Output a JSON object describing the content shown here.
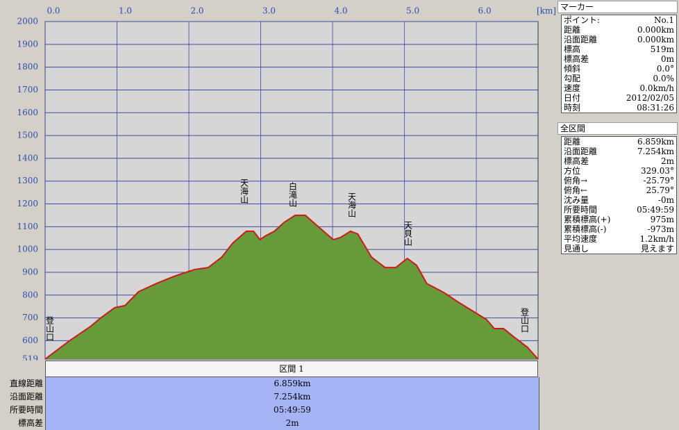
{
  "chart_data": {
    "type": "area",
    "x_unit_label": "[km]",
    "x": [
      0,
      0.34,
      0.63,
      0.77,
      0.97,
      1.11,
      1.3,
      1.55,
      1.79,
      2.08,
      2.27,
      2.46,
      2.61,
      2.8,
      2.9,
      2.99,
      3.06,
      3.19,
      3.33,
      3.48,
      3.62,
      3.82,
      4.01,
      4.11,
      4.25,
      4.35,
      4.54,
      4.73,
      4.88,
      5.04,
      5.17,
      5.31,
      5.56,
      5.75,
      5.94,
      6.14,
      6.25,
      6.38,
      6.52,
      6.71,
      6.859
    ],
    "values": [
      519,
      600,
      662,
      699,
      745,
      754,
      815,
      851,
      882,
      912,
      921,
      967,
      1028,
      1080,
      1080,
      1043,
      1059,
      1080,
      1120,
      1150,
      1150,
      1095,
      1043,
      1053,
      1080,
      1068,
      967,
      921,
      921,
      961,
      930,
      851,
      809,
      769,
      732,
      693,
      653,
      653,
      617,
      571,
      519
    ],
    "line_color": "#cc1a1a",
    "fill_color": "#679a38",
    "grid_color": "#3c4a9c",
    "xlim": [
      0,
      6.859
    ],
    "xticks": [
      {
        "value": 0,
        "label": "0.0"
      },
      {
        "value": 1,
        "label": "1.0"
      },
      {
        "value": 2,
        "label": "2.0"
      },
      {
        "value": 3,
        "label": "3.0"
      },
      {
        "value": 4,
        "label": "4.0"
      },
      {
        "value": 5,
        "label": "5.0"
      },
      {
        "value": 6,
        "label": "6.0"
      }
    ],
    "ylim": [
      519,
      2000
    ],
    "yticks": [
      519,
      600,
      700,
      800,
      900,
      1000,
      1100,
      1200,
      1300,
      1400,
      1500,
      1600,
      1700,
      1800,
      1900,
      2000
    ],
    "grid": true,
    "annotations": [
      "登山口",
      "天海山",
      "白滝山",
      "天海山",
      "天貝山",
      "登山口"
    ]
  },
  "section_table": {
    "header": "区間 1",
    "rows": [
      [
        "直線距離",
        "6.859km"
      ],
      [
        "沿面距離",
        "7.254km"
      ],
      [
        "所要時間",
        "05:49:59"
      ],
      [
        "標高差",
        "2m"
      ]
    ]
  },
  "marker_panel": {
    "title": "マーカー",
    "rows": [
      [
        "ポイント:",
        "No.1"
      ],
      [
        "距離",
        "0.000km"
      ],
      [
        "沿面距離",
        "0.000km"
      ],
      [
        "標高",
        "519m"
      ],
      [
        "標高差",
        "0m"
      ],
      [
        "傾斜",
        "0.0°"
      ],
      [
        "勾配",
        "0.0%"
      ],
      [
        "速度",
        "0.0km/h"
      ],
      [
        "日付",
        "2012/02/05"
      ],
      [
        "時刻",
        "08:31:26"
      ]
    ]
  },
  "total_panel": {
    "title": "全区間",
    "rows": [
      [
        "距離",
        "6.859km"
      ],
      [
        "沿面距離",
        "7.254km"
      ],
      [
        "標高差",
        "2m"
      ],
      [
        "方位",
        "329.03°"
      ],
      [
        "俯角→",
        "-25.79°"
      ],
      [
        "俯角←",
        "25.79°"
      ],
      [
        "沈み量",
        "-0m"
      ],
      [
        "所要時間",
        "05:49:59"
      ],
      [
        "累積標高(+)",
        "975m"
      ],
      [
        "累積標高(-)",
        "-973m"
      ],
      [
        "平均速度",
        "1.2km/h"
      ],
      [
        "見通し",
        "見えます"
      ]
    ]
  }
}
